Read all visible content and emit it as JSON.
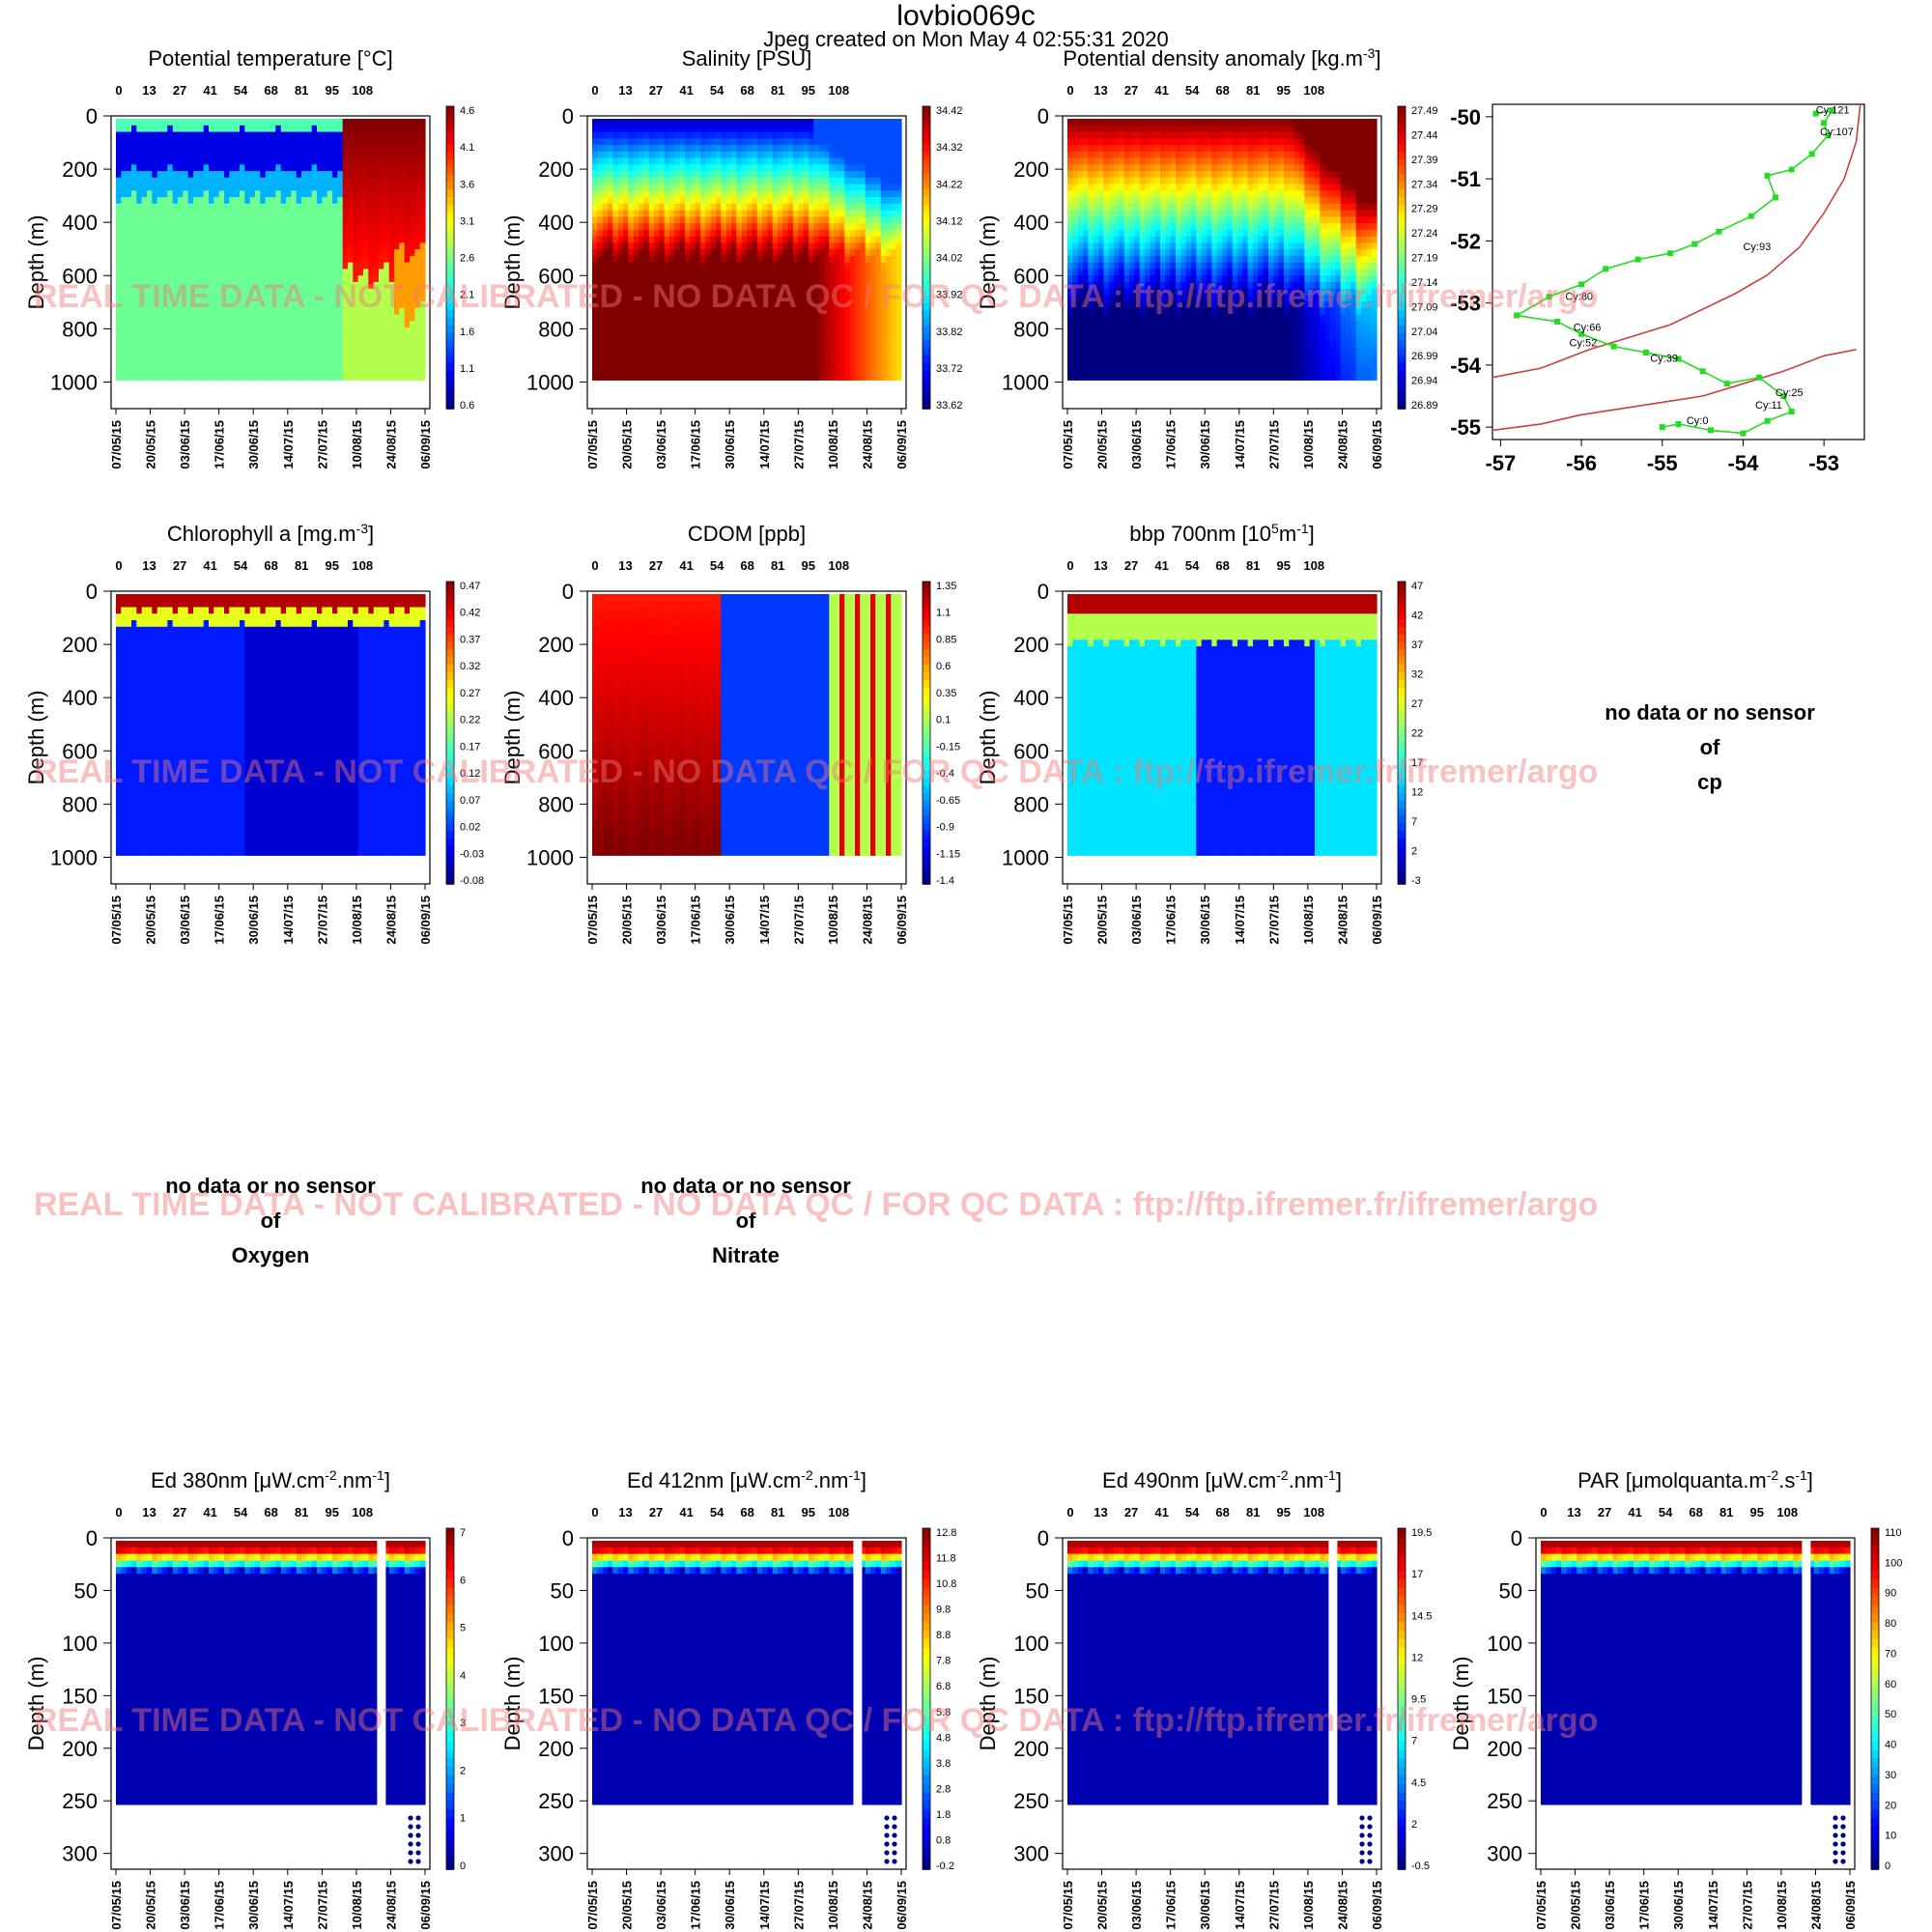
{
  "title": "lovbio069c",
  "subtitle": "Jpeg created on  Mon May  4 02:55:31 2020",
  "watermark": "REAL TIME DATA - NOT CALIBRATED - NO DATA QC   /  FOR QC DATA : ftp://ftp.ifremer.fr/ifremer/argo",
  "cycle_ticks": [
    "0",
    "13",
    "27",
    "41",
    "54",
    "68",
    "81",
    "95",
    "108"
  ],
  "date_ticks": [
    "07/05/15",
    "20/05/15",
    "03/06/15",
    "17/06/15",
    "30/06/15",
    "14/07/15",
    "27/07/15",
    "10/08/15",
    "24/08/15",
    "06/09/15"
  ],
  "colors": {
    "low": "#00008f",
    "mid": "#2ff2d0",
    "high": "#8b0000",
    "track": "#22dd22",
    "coast": "#c84040"
  },
  "chart_data": [
    {
      "type": "heatmap",
      "id": "temp",
      "title": "Potential temperature [°C]",
      "ylabel": "Depth (m)",
      "yticks": [
        "0",
        "200",
        "400",
        "600",
        "800",
        "1000"
      ],
      "ylim": [
        1100,
        0
      ],
      "colorbar_ticks": [
        "4.6",
        "4.1",
        "3.6",
        "3.1",
        "2.6",
        "2.1",
        "1.6",
        "1.1",
        "0.6"
      ]
    },
    {
      "type": "heatmap",
      "id": "sal",
      "title": "Salinity [PSU]",
      "ylabel": "Depth (m)",
      "yticks": [
        "0",
        "200",
        "400",
        "600",
        "800",
        "1000"
      ],
      "ylim": [
        1100,
        0
      ],
      "colorbar_ticks": [
        "34.42",
        "34.32",
        "34.22",
        "34.12",
        "34.02",
        "33.92",
        "33.82",
        "33.72",
        "33.62"
      ]
    },
    {
      "type": "heatmap",
      "id": "dens",
      "title": "Potential density anomaly [kg.m",
      "title_sup": "-3",
      "title_tail": "]",
      "ylabel": "Depth (m)",
      "yticks": [
        "0",
        "200",
        "400",
        "600",
        "800",
        "1000"
      ],
      "ylim": [
        1100,
        0
      ],
      "colorbar_ticks": [
        "27.49",
        "27.44",
        "27.39",
        "27.34",
        "27.29",
        "27.24",
        "27.19",
        "27.14",
        "27.09",
        "27.04",
        "26.99",
        "26.94",
        "26.89"
      ]
    },
    {
      "type": "heatmap",
      "id": "chla",
      "title": "Chlorophyll a [mg.m",
      "title_sup": "-3",
      "title_tail": "]",
      "ylabel": "Depth (m)",
      "yticks": [
        "0",
        "200",
        "400",
        "600",
        "800",
        "1000"
      ],
      "ylim": [
        1100,
        0
      ],
      "colorbar_ticks": [
        "0.47",
        "0.42",
        "0.37",
        "0.32",
        "0.27",
        "0.22",
        "0.17",
        "0.12",
        "0.07",
        "0.02",
        "-0.03",
        "-0.08"
      ]
    },
    {
      "type": "heatmap",
      "id": "cdom",
      "title": "CDOM  [ppb]",
      "ylabel": "Depth (m)",
      "yticks": [
        "0",
        "200",
        "400",
        "600",
        "800",
        "1000"
      ],
      "ylim": [
        1100,
        0
      ],
      "colorbar_ticks": [
        "1.35",
        "1.1",
        "0.85",
        "0.6",
        "0.35",
        "0.1",
        "-0.15",
        "-0.4",
        "-0.65",
        "-0.9",
        "-1.15",
        "-1.4"
      ]
    },
    {
      "type": "heatmap",
      "id": "bbp",
      "title": "bbp 700nm [10",
      "title_sup": "5",
      "title_mid": "m",
      "title_sup2": "-1",
      "title_tail": "]",
      "ylabel": "Depth (m)",
      "yticks": [
        "0",
        "200",
        "400",
        "600",
        "800",
        "1000"
      ],
      "ylim": [
        1100,
        0
      ],
      "colorbar_ticks": [
        "47",
        "42",
        "37",
        "32",
        "27",
        "22",
        "17",
        "12",
        "7",
        "2",
        "-3"
      ]
    },
    {
      "type": "heatmap",
      "id": "ed380",
      "title": "Ed 380nm [",
      "title_mu": "μ",
      "title_a": "W.cm",
      "title_sup": "-2",
      "title_b": ".nm",
      "title_sup2": "-1",
      "title_tail": "]",
      "ylabel": "Depth (m)",
      "yticks": [
        "0",
        "50",
        "100",
        "150",
        "200",
        "250",
        "300"
      ],
      "ylim": [
        315,
        0
      ],
      "colorbar_ticks": [
        "7",
        "6",
        "5",
        "4",
        "3",
        "2",
        "1",
        "0"
      ]
    },
    {
      "type": "heatmap",
      "id": "ed412",
      "title": "Ed 412nm [",
      "title_mu": "μ",
      "title_a": "W.cm",
      "title_sup": "-2",
      "title_b": ".nm",
      "title_sup2": "-1",
      "title_tail": "]",
      "ylabel": "Depth (m)",
      "yticks": [
        "0",
        "50",
        "100",
        "150",
        "200",
        "250",
        "300"
      ],
      "ylim": [
        315,
        0
      ],
      "colorbar_ticks": [
        "12.8",
        "11.8",
        "10.8",
        "9.8",
        "8.8",
        "7.8",
        "6.8",
        "5.8",
        "4.8",
        "3.8",
        "2.8",
        "1.8",
        "0.8",
        "-0.2"
      ]
    },
    {
      "type": "heatmap",
      "id": "ed490",
      "title": "Ed 490nm [",
      "title_mu": "μ",
      "title_a": "W.cm",
      "title_sup": "-2",
      "title_b": ".nm",
      "title_sup2": "-1",
      "title_tail": "]",
      "ylabel": "Depth (m)",
      "yticks": [
        "0",
        "50",
        "100",
        "150",
        "200",
        "250",
        "300"
      ],
      "ylim": [
        315,
        0
      ],
      "colorbar_ticks": [
        "19.5",
        "17",
        "14.5",
        "12",
        "9.5",
        "7",
        "4.5",
        "2",
        "-0.5"
      ]
    },
    {
      "type": "heatmap",
      "id": "par",
      "title": "PAR [",
      "title_mu": "μ",
      "title_a": "molquanta.m",
      "title_sup": "-2",
      "title_b": ".s",
      "title_sup2": "-1",
      "title_tail": "]",
      "ylabel": "Depth (m)",
      "yticks": [
        "0",
        "50",
        "100",
        "150",
        "200",
        "250",
        "300"
      ],
      "ylim": [
        315,
        0
      ],
      "colorbar_ticks": [
        "110",
        "100",
        "90",
        "80",
        "70",
        "60",
        "50",
        "40",
        "30",
        "20",
        "10",
        "0"
      ]
    },
    {
      "type": "scatter",
      "id": "map",
      "xlim": [
        -57.1,
        -52.5
      ],
      "ylim": [
        -55.2,
        -49.8
      ],
      "xticks": [
        "-57",
        "-56",
        "-55",
        "-54",
        "-53"
      ],
      "yticks": [
        "-50",
        "-51",
        "-52",
        "-53",
        "-54",
        "-55"
      ],
      "track": [
        [
          -53.1,
          -49.95
        ],
        [
          -52.9,
          -49.9
        ],
        [
          -53.0,
          -50.1
        ],
        [
          -52.95,
          -50.3
        ],
        [
          -53.15,
          -50.6
        ],
        [
          -53.4,
          -50.85
        ],
        [
          -53.7,
          -50.95
        ],
        [
          -53.6,
          -51.3
        ],
        [
          -53.9,
          -51.6
        ],
        [
          -54.3,
          -51.85
        ],
        [
          -54.6,
          -52.05
        ],
        [
          -54.9,
          -52.2
        ],
        [
          -55.3,
          -52.3
        ],
        [
          -55.7,
          -52.45
        ],
        [
          -56.0,
          -52.7
        ],
        [
          -56.4,
          -52.9
        ],
        [
          -56.8,
          -53.2
        ],
        [
          -56.3,
          -53.3
        ],
        [
          -56.0,
          -53.5
        ],
        [
          -55.6,
          -53.7
        ],
        [
          -55.2,
          -53.8
        ],
        [
          -54.8,
          -53.9
        ],
        [
          -54.5,
          -54.1
        ],
        [
          -54.2,
          -54.3
        ],
        [
          -53.8,
          -54.2
        ],
        [
          -53.5,
          -54.5
        ],
        [
          -53.4,
          -54.75
        ],
        [
          -53.7,
          -54.9
        ],
        [
          -54.0,
          -55.1
        ],
        [
          -54.4,
          -55.05
        ],
        [
          -54.8,
          -54.95
        ],
        [
          -55.0,
          -55.0
        ]
      ],
      "labels": [
        {
          "text": "Cy:121",
          "x": -53.1,
          "y": -49.95
        },
        {
          "text": "Cy:107",
          "x": -53.05,
          "y": -50.3
        },
        {
          "text": "Cy:93",
          "x": -54.0,
          "y": -52.15
        },
        {
          "text": "Cy:80",
          "x": -56.2,
          "y": -52.95
        },
        {
          "text": "Cy:66",
          "x": -56.1,
          "y": -53.45
        },
        {
          "text": "Cy:52",
          "x": -56.15,
          "y": -53.7
        },
        {
          "text": "Cy:39",
          "x": -55.15,
          "y": -53.95
        },
        {
          "text": "Cy:25",
          "x": -53.6,
          "y": -54.5
        },
        {
          "text": "Cy:11",
          "x": -53.85,
          "y": -54.7
        },
        {
          "text": "Cy:0",
          "x": -54.7,
          "y": -54.95
        }
      ],
      "coast": [
        [
          -57.1,
          -54.2
        ],
        [
          -56.5,
          -54.05
        ],
        [
          -55.9,
          -53.75
        ],
        [
          -55.4,
          -53.55
        ],
        [
          -54.9,
          -53.35
        ],
        [
          -54.5,
          -53.1
        ],
        [
          -54.1,
          -52.85
        ],
        [
          -53.7,
          -52.55
        ],
        [
          -53.3,
          -52.1
        ],
        [
          -53.0,
          -51.55
        ],
        [
          -52.75,
          -51.0
        ],
        [
          -52.6,
          -50.4
        ],
        [
          -52.55,
          -49.8
        ]
      ],
      "coast2": [
        [
          -57.1,
          -55.05
        ],
        [
          -56.5,
          -54.95
        ],
        [
          -56.0,
          -54.8
        ],
        [
          -55.5,
          -54.7
        ],
        [
          -55.0,
          -54.6
        ],
        [
          -54.5,
          -54.5
        ],
        [
          -54.0,
          -54.3
        ],
        [
          -53.5,
          -54.1
        ],
        [
          -53.0,
          -53.85
        ],
        [
          -52.6,
          -53.75
        ]
      ]
    }
  ],
  "empty_panels": [
    {
      "line1": "no data or no sensor",
      "line2": "of",
      "line3": "cp"
    },
    {
      "line1": "no data or no sensor",
      "line2": "of",
      "line3": "Oxygen"
    },
    {
      "line1": "no data or no sensor",
      "line2": "of",
      "line3": "Nitrate"
    }
  ]
}
